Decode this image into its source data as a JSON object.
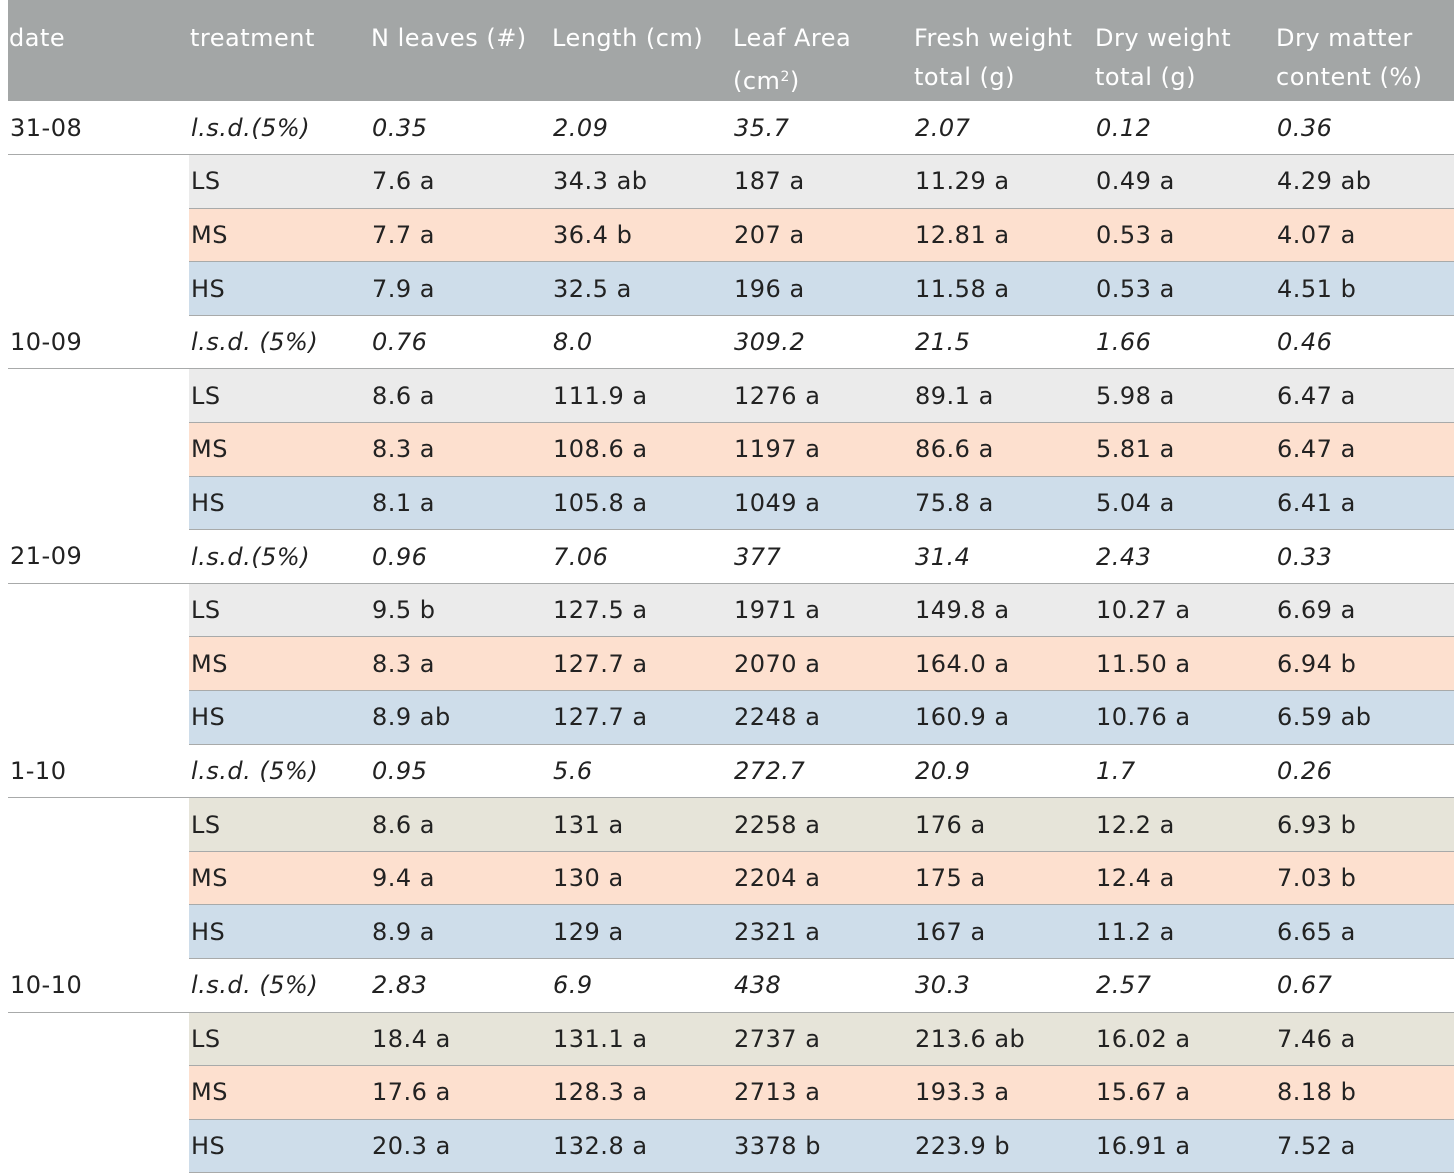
{
  "table": {
    "headers": [
      {
        "line1": "date",
        "line2": ""
      },
      {
        "line1": "treatment",
        "line2": ""
      },
      {
        "line1": "N leaves (#)",
        "line2": ""
      },
      {
        "line1": "Length (cm)",
        "line2": ""
      },
      {
        "line1": "Leaf Area",
        "line2": "(cm²)"
      },
      {
        "line1": "Fresh weight",
        "line2": "total (g)"
      },
      {
        "line1": "Dry weight",
        "line2": "total (g)"
      },
      {
        "line1": "Dry matter",
        "line2": "content (%)"
      }
    ],
    "groups": [
      {
        "date": "31-08",
        "lsd": [
          "l.s.d.(5%)",
          "0.35",
          "2.09",
          "35.7",
          "2.07",
          "0.12",
          "0.36"
        ],
        "rows": [
          [
            "LS",
            "7.6 a",
            "34.3 ab",
            "187 a",
            "11.29 a",
            "0.49 a",
            "4.29 ab"
          ],
          [
            "MS",
            "7.7 a",
            "36.4 b",
            "207 a",
            "12.81 a",
            "0.53 a",
            "4.07 a"
          ],
          [
            "HS",
            "7.9 a",
            "32.5 a",
            "196 a",
            "11.58 a",
            "0.53 a",
            "4.51 b"
          ]
        ]
      },
      {
        "date": "10-09",
        "lsd": [
          "l.s.d. (5%)",
          "0.76",
          "8.0",
          "309.2",
          "21.5",
          "1.66",
          "0.46"
        ],
        "rows": [
          [
            "LS",
            "8.6 a",
            "111.9 a",
            "1276 a",
            "89.1 a",
            "5.98 a",
            "6.47 a"
          ],
          [
            "MS",
            "8.3 a",
            "108.6 a",
            "1197 a",
            "86.6 a",
            "5.81 a",
            "6.47 a"
          ],
          [
            "HS",
            "8.1 a",
            "105.8 a",
            "1049 a",
            "75.8 a",
            "5.04 a",
            "6.41 a"
          ]
        ]
      },
      {
        "date": "21-09",
        "lsd": [
          "l.s.d.(5%)",
          "0.96",
          "7.06",
          "377",
          "31.4",
          "2.43",
          "0.33"
        ],
        "rows": [
          [
            "LS",
            "9.5 b",
            "127.5 a",
            "1971 a",
            "149.8 a",
            "10.27 a",
            "6.69 a"
          ],
          [
            "MS",
            "8.3 a",
            "127.7 a",
            "2070 a",
            "164.0 a",
            "11.50 a",
            "6.94 b"
          ],
          [
            "HS",
            "8.9 ab",
            "127.7 a",
            "2248 a",
            "160.9 a",
            "10.76 a",
            "6.59 ab"
          ]
        ]
      },
      {
        "date": "1-10",
        "lsd": [
          "l.s.d. (5%)",
          "0.95",
          "5.6",
          "272.7",
          "20.9",
          "1.7",
          "0.26"
        ],
        "rows": [
          [
            "LS",
            "8.6 a",
            "131 a",
            "2258 a",
            "176 a",
            "12.2 a",
            "6.93 b"
          ],
          [
            "MS",
            "9.4 a",
            "130 a",
            "2204 a",
            "175 a",
            "12.4 a",
            "7.03 b"
          ],
          [
            "HS",
            "8.9 a",
            "129 a",
            "2321 a",
            "167 a",
            "11.2 a",
            "6.65 a"
          ]
        ]
      },
      {
        "date": "10-10",
        "lsd": [
          "l.s.d. (5%)",
          "2.83",
          "6.9",
          "438",
          "30.3",
          "2.57",
          "0.67"
        ],
        "rows": [
          [
            "LS",
            "18.4 a",
            "131.1 a",
            "2737 a",
            "213.6 ab",
            "16.02 a",
            "7.46 a"
          ],
          [
            "MS",
            "17.6 a",
            "128.3 a",
            "2713 a",
            "193.3 a",
            "15.67 a",
            "8.18 b"
          ],
          [
            "HS",
            "20.3 a",
            "132.8 a",
            "3378 b",
            "223.9 b",
            "16.91 a",
            "7.52 a"
          ]
        ]
      }
    ],
    "colors": {
      "header_bg": "#a3a6a6",
      "LS_bg": "#ebebeb",
      "LS_bg_late": "#e6e4d9",
      "MS_bg": "#fde0cf",
      "HS_bg": "#ceddea"
    }
  }
}
